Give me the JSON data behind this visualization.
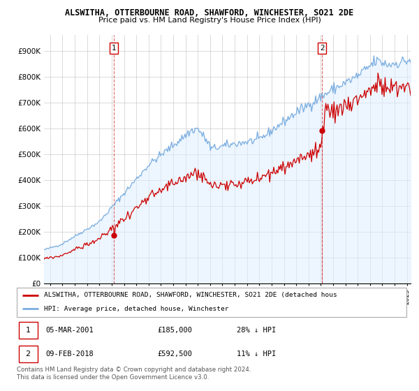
{
  "title": "ALSWITHA, OTTERBOURNE ROAD, SHAWFORD, WINCHESTER, SO21 2DE",
  "subtitle": "Price paid vs. HM Land Registry's House Price Index (HPI)",
  "ylabel_ticks": [
    "£0",
    "£100K",
    "£200K",
    "£300K",
    "£400K",
    "£500K",
    "£600K",
    "£700K",
    "£800K",
    "£900K"
  ],
  "ytick_vals": [
    0,
    100000,
    200000,
    300000,
    400000,
    500000,
    600000,
    700000,
    800000,
    900000
  ],
  "ylim": [
    0,
    960000
  ],
  "xlim_start": 1995.5,
  "xlim_end": 2025.3,
  "sale1_date": 2001.17,
  "sale1_price": 185000,
  "sale2_date": 2018.1,
  "sale2_price": 592500,
  "legend_line1": "ALSWITHA, OTTERBOURNE ROAD, SHAWFORD, WINCHESTER, SO21 2DE (detached hous",
  "legend_line2": "HPI: Average price, detached house, Winchester",
  "line_color_red": "#cc0000",
  "line_color_blue": "#7aade0",
  "fill_color_blue": "#ddeeff",
  "background_color": "#ffffff",
  "footer": "Contains HM Land Registry data © Crown copyright and database right 2024.\nThis data is licensed under the Open Government Licence v3.0."
}
